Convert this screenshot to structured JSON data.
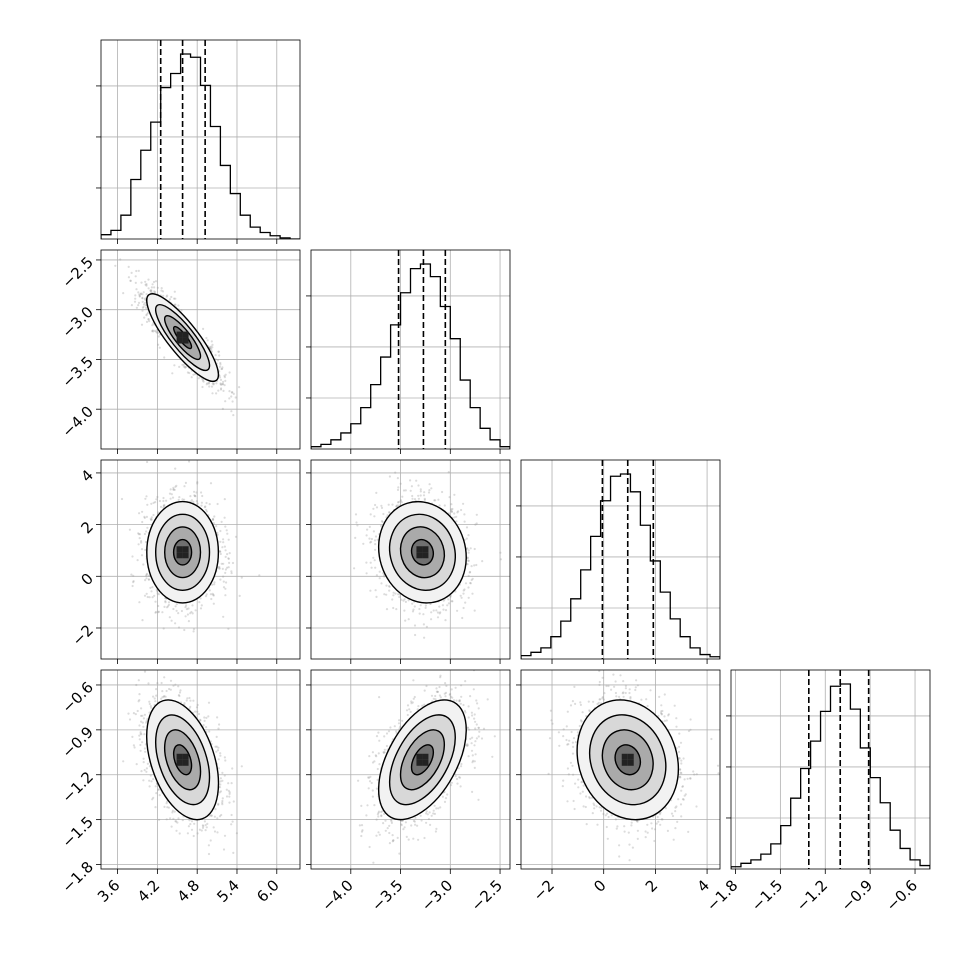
{
  "chart_data": {
    "type": "corner",
    "grid": true,
    "parameters": [
      {
        "range": [
          3.35,
          6.35
        ],
        "ticks": [
          3.6,
          4.2,
          4.8,
          5.4,
          6.0
        ],
        "tick_labels": [
          "3.6",
          "4.2",
          "4.8",
          "5.4",
          "6.0"
        ],
        "quantiles": [
          4.25,
          4.58,
          4.92
        ],
        "mean": 4.58,
        "sd": 0.27,
        "hist_bins": [
          4,
          8,
          22,
          55,
          82,
          108,
          140,
          153,
          171,
          168,
          142,
          104,
          68,
          42,
          22,
          11,
          6,
          3,
          1,
          0
        ]
      },
      {
        "range": [
          -4.4,
          -2.4
        ],
        "ticks": [
          -4.0,
          -3.5,
          -3.0,
          -2.5
        ],
        "tick_labels": [
          "−4.0",
          "−3.5",
          "−3.0",
          "−2.5"
        ],
        "quantiles": [
          -3.52,
          -3.27,
          -3.05
        ],
        "mean": -3.28,
        "sd": 0.22,
        "hist_bins": [
          2,
          4,
          8,
          14,
          22,
          36,
          56,
          80,
          108,
          136,
          157,
          161,
          150,
          124,
          96,
          60,
          36,
          18,
          8,
          2
        ]
      },
      {
        "range": [
          -3.2,
          4.5
        ],
        "ticks": [
          -2,
          0,
          2,
          4
        ],
        "tick_labels": [
          "−2",
          "0",
          "2",
          "4"
        ],
        "quantiles": [
          -0.05,
          0.93,
          1.92
        ],
        "mean": 0.93,
        "sd": 0.98,
        "hist_bins": [
          3,
          6,
          10,
          20,
          34,
          54,
          80,
          110,
          142,
          164,
          166,
          150,
          120,
          88,
          60,
          36,
          20,
          10,
          4,
          2
        ]
      },
      {
        "range": [
          -1.83,
          -0.5
        ],
        "ticks": [
          -1.8,
          -1.5,
          -1.2,
          -0.9,
          -0.6
        ],
        "tick_labels": [
          "−1.8",
          "−1.5",
          "−1.2",
          "−0.9",
          "−0.6"
        ],
        "quantiles": [
          -1.31,
          -1.1,
          -0.91
        ],
        "mean": -1.1,
        "sd": 0.2,
        "hist_bins": [
          2,
          5,
          8,
          13,
          22,
          38,
          62,
          88,
          112,
          138,
          160,
          162,
          140,
          106,
          80,
          58,
          34,
          18,
          8,
          3
        ]
      }
    ],
    "correlations": [
      [
        1.0,
        -0.85,
        0.0,
        -0.4
      ],
      [
        -0.85,
        1.0,
        -0.1,
        0.5
      ],
      [
        0.0,
        -0.1,
        1.0,
        -0.15
      ],
      [
        -0.4,
        0.5,
        -0.15,
        1.0
      ]
    ],
    "contour_levels_sigma": [
      0.5,
      1.0,
      1.5,
      2.0
    ]
  }
}
